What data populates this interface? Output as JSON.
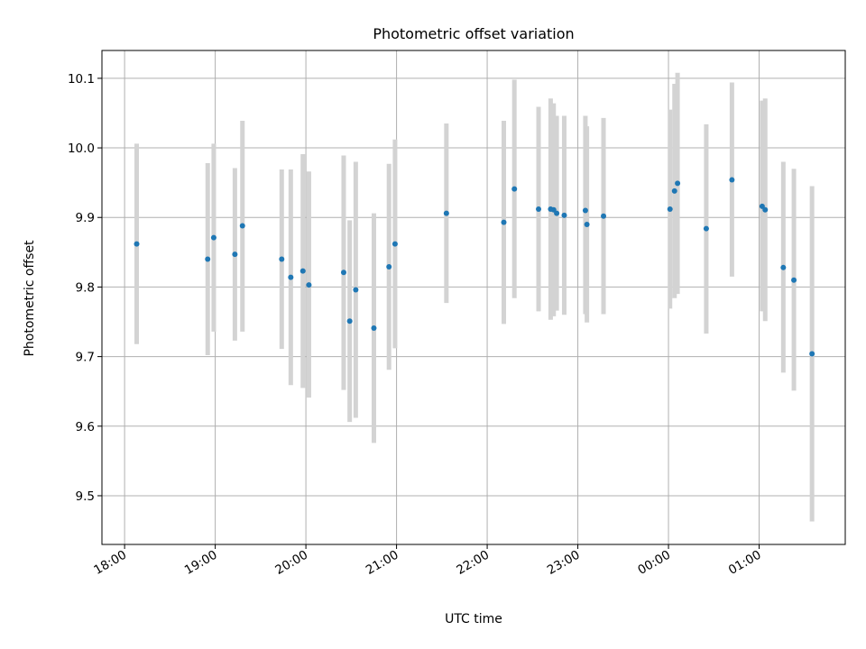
{
  "chart_data": {
    "type": "scatter",
    "title": "Photometric offset variation",
    "xlabel": "UTC time",
    "ylabel": "Photometric offset",
    "x_unit": "UTC time (hours, clock times after midnight continue past 24)",
    "xlim": [
      "17:45",
      "01:57"
    ],
    "ylim": [
      9.43,
      10.14
    ],
    "x_ticks": [
      {
        "label": "18:00",
        "value": "18:00"
      },
      {
        "label": "19:00",
        "value": "19:00"
      },
      {
        "label": "20:00",
        "value": "20:00"
      },
      {
        "label": "21:00",
        "value": "21:00"
      },
      {
        "label": "22:00",
        "value": "22:00"
      },
      {
        "label": "23:00",
        "value": "23:00"
      },
      {
        "label": "00:00",
        "value": "00:00"
      },
      {
        "label": "01:00",
        "value": "01:00"
      }
    ],
    "y_ticks": [
      {
        "label": "9.5",
        "value": 9.5
      },
      {
        "label": "9.6",
        "value": 9.6
      },
      {
        "label": "9.7",
        "value": 9.7
      },
      {
        "label": "9.8",
        "value": 9.8
      },
      {
        "label": "9.9",
        "value": 9.9
      },
      {
        "label": "10.0",
        "value": 10.0
      },
      {
        "label": "10.1",
        "value": 10.1
      }
    ],
    "grid": true,
    "series": [
      {
        "marker_color": "#1f77b4",
        "errorbar_color": "#d3d3d3",
        "points": [
          {
            "x": "18:08",
            "y": 9.862,
            "ylow": 9.718,
            "yhigh": 10.006
          },
          {
            "x": "18:55",
            "y": 9.84,
            "ylow": 9.702,
            "yhigh": 9.978
          },
          {
            "x": "18:59",
            "y": 9.871,
            "ylow": 9.736,
            "yhigh": 10.006
          },
          {
            "x": "19:13",
            "y": 9.847,
            "ylow": 9.723,
            "yhigh": 9.971
          },
          {
            "x": "19:18",
            "y": 9.888,
            "ylow": 9.736,
            "yhigh": 10.039
          },
          {
            "x": "19:44",
            "y": 9.84,
            "ylow": 9.711,
            "yhigh": 9.969
          },
          {
            "x": "19:50",
            "y": 9.814,
            "ylow": 9.659,
            "yhigh": 9.969
          },
          {
            "x": "19:58",
            "y": 9.823,
            "ylow": 9.655,
            "yhigh": 9.991
          },
          {
            "x": "20:02",
            "y": 9.803,
            "ylow": 9.641,
            "yhigh": 9.966
          },
          {
            "x": "20:25",
            "y": 9.821,
            "ylow": 9.652,
            "yhigh": 9.989
          },
          {
            "x": "20:29",
            "y": 9.751,
            "ylow": 9.606,
            "yhigh": 9.896
          },
          {
            "x": "20:33",
            "y": 9.796,
            "ylow": 9.612,
            "yhigh": 9.98
          },
          {
            "x": "20:45",
            "y": 9.741,
            "ylow": 9.576,
            "yhigh": 9.906
          },
          {
            "x": "20:55",
            "y": 9.829,
            "ylow": 9.681,
            "yhigh": 9.977
          },
          {
            "x": "20:59",
            "y": 9.862,
            "ylow": 9.712,
            "yhigh": 10.012
          },
          {
            "x": "21:33",
            "y": 9.906,
            "ylow": 9.777,
            "yhigh": 10.035
          },
          {
            "x": "22:11",
            "y": 9.893,
            "ylow": 9.747,
            "yhigh": 10.039
          },
          {
            "x": "22:18",
            "y": 9.941,
            "ylow": 9.784,
            "yhigh": 10.098
          },
          {
            "x": "22:34",
            "y": 9.912,
            "ylow": 9.765,
            "yhigh": 10.059
          },
          {
            "x": "22:42",
            "y": 9.912,
            "ylow": 9.753,
            "yhigh": 10.071
          },
          {
            "x": "22:44",
            "y": 9.911,
            "ylow": 9.758,
            "yhigh": 10.064
          },
          {
            "x": "22:46",
            "y": 9.906,
            "ylow": 9.766,
            "yhigh": 10.046
          },
          {
            "x": "22:51",
            "y": 9.903,
            "ylow": 9.76,
            "yhigh": 10.046
          },
          {
            "x": "23:05",
            "y": 9.91,
            "ylow": 9.761,
            "yhigh": 10.046
          },
          {
            "x": "23:06",
            "y": 9.89,
            "ylow": 9.749,
            "yhigh": 10.031
          },
          {
            "x": "23:17",
            "y": 9.902,
            "ylow": 9.761,
            "yhigh": 10.043
          },
          {
            "x": "00:01",
            "y": 9.912,
            "ylow": 9.769,
            "yhigh": 10.055
          },
          {
            "x": "00:04",
            "y": 9.938,
            "ylow": 9.784,
            "yhigh": 10.092
          },
          {
            "x": "00:06",
            "y": 9.949,
            "ylow": 9.79,
            "yhigh": 10.108
          },
          {
            "x": "00:25",
            "y": 9.884,
            "ylow": 9.733,
            "yhigh": 10.034
          },
          {
            "x": "00:42",
            "y": 9.954,
            "ylow": 9.815,
            "yhigh": 10.094
          },
          {
            "x": "01:02",
            "y": 9.916,
            "ylow": 9.765,
            "yhigh": 10.068
          },
          {
            "x": "01:04",
            "y": 9.911,
            "ylow": 9.751,
            "yhigh": 10.071
          },
          {
            "x": "01:16",
            "y": 9.828,
            "ylow": 9.677,
            "yhigh": 9.98
          },
          {
            "x": "01:23",
            "y": 9.81,
            "ylow": 9.651,
            "yhigh": 9.97
          },
          {
            "x": "01:35",
            "y": 9.704,
            "ylow": 9.463,
            "yhigh": 9.945
          }
        ]
      }
    ]
  }
}
